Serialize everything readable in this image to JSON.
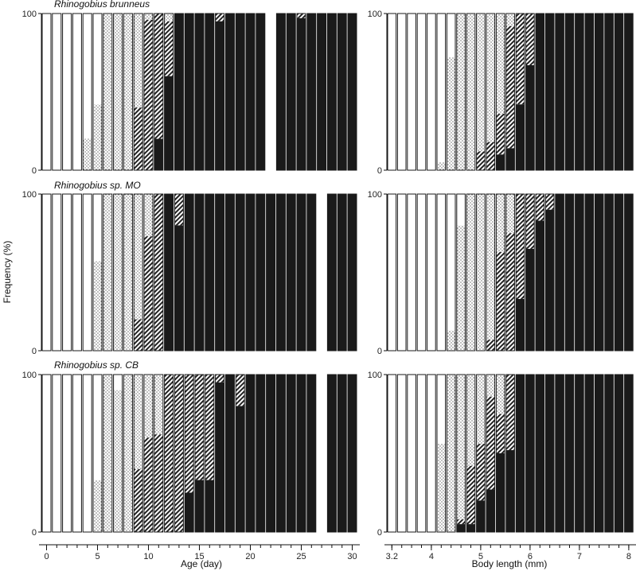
{
  "figure": {
    "y_axis_title": "Frequency (%)",
    "x_axis_titles": [
      "Age (day)",
      "Body length (mm)"
    ]
  },
  "colors": {
    "class_1": "#ffffff",
    "class_2": "dotted",
    "class_3": "hatched",
    "class_4": "#1a1a1a",
    "outline": "#1a1a1a"
  },
  "chart_data": [
    {
      "type": "stacked-bar",
      "title": "Rhinogobius brunneus",
      "xlabel": "Age (day)",
      "ylabel": "Frequency (%)",
      "x_ticks": [
        "0",
        "5",
        "10",
        "15",
        "20",
        "25",
        "30"
      ],
      "y_ticks": [
        "0",
        "100"
      ],
      "ylim": [
        0,
        100
      ],
      "xlim": [
        -0.5,
        30.5
      ],
      "categories": [
        0,
        1,
        2,
        3,
        4,
        5,
        6,
        7,
        8,
        9,
        10,
        11,
        12,
        13,
        14,
        15,
        16,
        17,
        18,
        19,
        20,
        21,
        22,
        23,
        24,
        25,
        26,
        27,
        28,
        29,
        30
      ],
      "series_order": [
        "class_1",
        "class_2",
        "class_3",
        "class_4"
      ],
      "missing": [
        22
      ],
      "values": [
        [
          100,
          0,
          0,
          0
        ],
        [
          100,
          0,
          0,
          0
        ],
        [
          100,
          0,
          0,
          0
        ],
        [
          100,
          0,
          0,
          0
        ],
        [
          80,
          20,
          0,
          0
        ],
        [
          58,
          42,
          0,
          0
        ],
        [
          0,
          100,
          0,
          0
        ],
        [
          0,
          100,
          0,
          0
        ],
        [
          0,
          100,
          0,
          0
        ],
        [
          0,
          60,
          40,
          0
        ],
        [
          0,
          4,
          96,
          0
        ],
        [
          0,
          0,
          80,
          20
        ],
        [
          0,
          5,
          35,
          60
        ],
        [
          0,
          0,
          0,
          100
        ],
        [
          0,
          0,
          0,
          100
        ],
        [
          0,
          0,
          0,
          100
        ],
        [
          0,
          0,
          0,
          100
        ],
        [
          0,
          0,
          5,
          95
        ],
        [
          0,
          0,
          0,
          100
        ],
        [
          0,
          0,
          0,
          100
        ],
        [
          0,
          0,
          0,
          100
        ],
        [
          0,
          0,
          0,
          100
        ],
        [
          0,
          0,
          0,
          0
        ],
        [
          0,
          0,
          0,
          100
        ],
        [
          0,
          0,
          0,
          100
        ],
        [
          0,
          0,
          3,
          97
        ],
        [
          0,
          0,
          0,
          100
        ],
        [
          0,
          0,
          0,
          100
        ],
        [
          0,
          0,
          0,
          100
        ],
        [
          0,
          0,
          0,
          100
        ],
        [
          0,
          0,
          0,
          100
        ]
      ]
    },
    {
      "type": "stacked-bar",
      "title": "",
      "xlabel": "Body length (mm)",
      "ylabel": "",
      "x_ticks": [
        "3.2",
        "4",
        "5",
        "6",
        "7",
        "8"
      ],
      "y_ticks": [
        "0",
        "100"
      ],
      "ylim": [
        0,
        100
      ],
      "xlim": [
        3.1,
        8.1
      ],
      "categories": [
        3.2,
        3.4,
        3.6,
        3.8,
        4.0,
        4.2,
        4.4,
        4.6,
        4.8,
        5.0,
        5.2,
        5.4,
        5.6,
        5.8,
        6.0,
        6.2,
        6.4,
        6.6,
        6.8,
        7.0,
        7.2,
        7.4,
        7.6,
        7.8,
        8.0
      ],
      "series_order": [
        "class_1",
        "class_2",
        "class_3",
        "class_4"
      ],
      "missing": [],
      "values": [
        [
          100,
          0,
          0,
          0
        ],
        [
          100,
          0,
          0,
          0
        ],
        [
          100,
          0,
          0,
          0
        ],
        [
          100,
          0,
          0,
          0
        ],
        [
          100,
          0,
          0,
          0
        ],
        [
          95,
          5,
          0,
          0
        ],
        [
          28,
          72,
          0,
          0
        ],
        [
          0,
          100,
          0,
          0
        ],
        [
          0,
          100,
          0,
          0
        ],
        [
          0,
          88,
          12,
          0
        ],
        [
          0,
          82,
          18,
          0
        ],
        [
          0,
          64,
          26,
          10
        ],
        [
          0,
          8,
          78,
          14
        ],
        [
          0,
          0,
          58,
          42
        ],
        [
          0,
          0,
          33,
          67
        ],
        [
          0,
          0,
          0,
          100
        ],
        [
          0,
          0,
          0,
          100
        ],
        [
          0,
          0,
          0,
          100
        ],
        [
          0,
          0,
          0,
          100
        ],
        [
          0,
          0,
          0,
          100
        ],
        [
          0,
          0,
          0,
          100
        ],
        [
          0,
          0,
          0,
          100
        ],
        [
          0,
          0,
          0,
          100
        ],
        [
          0,
          0,
          0,
          100
        ],
        [
          0,
          0,
          0,
          100
        ]
      ]
    },
    {
      "type": "stacked-bar",
      "title": "Rhinogobius sp. MO",
      "xlabel": "Age (day)",
      "ylabel": "Frequency (%)",
      "x_ticks": [
        "0",
        "5",
        "10",
        "15",
        "20",
        "25",
        "30"
      ],
      "y_ticks": [
        "0",
        "100"
      ],
      "ylim": [
        0,
        100
      ],
      "xlim": [
        -0.5,
        30.5
      ],
      "categories": [
        0,
        1,
        2,
        3,
        4,
        5,
        6,
        7,
        8,
        9,
        10,
        11,
        12,
        13,
        14,
        15,
        16,
        17,
        18,
        19,
        20,
        21,
        22,
        23,
        24,
        25,
        26,
        27,
        28,
        29,
        30
      ],
      "series_order": [
        "class_1",
        "class_2",
        "class_3",
        "class_4"
      ],
      "missing": [
        27
      ],
      "values": [
        [
          100,
          0,
          0,
          0
        ],
        [
          100,
          0,
          0,
          0
        ],
        [
          100,
          0,
          0,
          0
        ],
        [
          100,
          0,
          0,
          0
        ],
        [
          100,
          0,
          0,
          0
        ],
        [
          43,
          57,
          0,
          0
        ],
        [
          0,
          100,
          0,
          0
        ],
        [
          0,
          100,
          0,
          0
        ],
        [
          0,
          100,
          0,
          0
        ],
        [
          0,
          80,
          20,
          0
        ],
        [
          0,
          27,
          73,
          0
        ],
        [
          0,
          0,
          100,
          0
        ],
        [
          0,
          0,
          0,
          100
        ],
        [
          0,
          0,
          20,
          80
        ],
        [
          0,
          0,
          0,
          100
        ],
        [
          0,
          0,
          0,
          100
        ],
        [
          0,
          0,
          0,
          100
        ],
        [
          0,
          0,
          0,
          100
        ],
        [
          0,
          0,
          0,
          100
        ],
        [
          0,
          0,
          0,
          100
        ],
        [
          0,
          0,
          0,
          100
        ],
        [
          0,
          0,
          0,
          100
        ],
        [
          0,
          0,
          0,
          100
        ],
        [
          0,
          0,
          0,
          100
        ],
        [
          0,
          0,
          0,
          100
        ],
        [
          0,
          0,
          0,
          100
        ],
        [
          0,
          0,
          0,
          100
        ],
        [
          0,
          0,
          0,
          0
        ],
        [
          0,
          0,
          0,
          100
        ],
        [
          0,
          0,
          0,
          100
        ],
        [
          0,
          0,
          0,
          100
        ]
      ]
    },
    {
      "type": "stacked-bar",
      "title": "",
      "xlabel": "Body length (mm)",
      "ylabel": "",
      "x_ticks": [
        "3.2",
        "4",
        "5",
        "6",
        "7",
        "8"
      ],
      "y_ticks": [
        "0",
        "100"
      ],
      "ylim": [
        0,
        100
      ],
      "xlim": [
        3.1,
        8.1
      ],
      "categories": [
        3.2,
        3.4,
        3.6,
        3.8,
        4.0,
        4.2,
        4.4,
        4.6,
        4.8,
        5.0,
        5.2,
        5.4,
        5.6,
        5.8,
        6.0,
        6.2,
        6.4,
        6.6,
        6.8,
        7.0,
        7.2,
        7.4,
        7.6,
        7.8,
        8.0
      ],
      "series_order": [
        "class_1",
        "class_2",
        "class_3",
        "class_4"
      ],
      "missing": [],
      "values": [
        [
          100,
          0,
          0,
          0
        ],
        [
          100,
          0,
          0,
          0
        ],
        [
          100,
          0,
          0,
          0
        ],
        [
          100,
          0,
          0,
          0
        ],
        [
          100,
          0,
          0,
          0
        ],
        [
          100,
          0,
          0,
          0
        ],
        [
          87,
          13,
          0,
          0
        ],
        [
          20,
          80,
          0,
          0
        ],
        [
          0,
          100,
          0,
          0
        ],
        [
          0,
          100,
          0,
          0
        ],
        [
          0,
          93,
          7,
          0
        ],
        [
          0,
          37,
          63,
          0
        ],
        [
          0,
          25,
          75,
          0
        ],
        [
          0,
          0,
          67,
          33
        ],
        [
          0,
          0,
          35,
          65
        ],
        [
          0,
          0,
          17,
          83
        ],
        [
          0,
          0,
          10,
          90
        ],
        [
          0,
          0,
          0,
          100
        ],
        [
          0,
          0,
          0,
          100
        ],
        [
          0,
          0,
          0,
          100
        ],
        [
          0,
          0,
          0,
          100
        ],
        [
          0,
          0,
          0,
          100
        ],
        [
          0,
          0,
          0,
          100
        ],
        [
          0,
          0,
          0,
          100
        ],
        [
          0,
          0,
          0,
          100
        ]
      ]
    },
    {
      "type": "stacked-bar",
      "title": "Rhinogobius sp. CB",
      "xlabel": "Age (day)",
      "ylabel": "Frequency (%)",
      "x_ticks": [
        "0",
        "5",
        "10",
        "15",
        "20",
        "25",
        "30"
      ],
      "y_ticks": [
        "0",
        "100"
      ],
      "ylim": [
        0,
        100
      ],
      "xlim": [
        -0.5,
        30.5
      ],
      "categories": [
        0,
        1,
        2,
        3,
        4,
        5,
        6,
        7,
        8,
        9,
        10,
        11,
        12,
        13,
        14,
        15,
        16,
        17,
        18,
        19,
        20,
        21,
        22,
        23,
        24,
        25,
        26,
        27,
        28,
        29,
        30
      ],
      "series_order": [
        "class_1",
        "class_2",
        "class_3",
        "class_4"
      ],
      "missing": [
        27
      ],
      "values": [
        [
          100,
          0,
          0,
          0
        ],
        [
          100,
          0,
          0,
          0
        ],
        [
          100,
          0,
          0,
          0
        ],
        [
          100,
          0,
          0,
          0
        ],
        [
          100,
          0,
          0,
          0
        ],
        [
          67,
          33,
          0,
          0
        ],
        [
          0,
          100,
          0,
          0
        ],
        [
          10,
          90,
          0,
          0
        ],
        [
          0,
          100,
          0,
          0
        ],
        [
          0,
          60,
          40,
          0
        ],
        [
          0,
          40,
          60,
          0
        ],
        [
          0,
          38,
          62,
          0
        ],
        [
          0,
          0,
          100,
          0
        ],
        [
          0,
          0,
          100,
          0
        ],
        [
          0,
          0,
          75,
          25
        ],
        [
          0,
          0,
          67,
          33
        ],
        [
          0,
          0,
          67,
          33
        ],
        [
          0,
          0,
          5,
          95
        ],
        [
          0,
          0,
          0,
          100
        ],
        [
          0,
          0,
          20,
          80
        ],
        [
          0,
          0,
          0,
          100
        ],
        [
          0,
          0,
          0,
          100
        ],
        [
          0,
          0,
          0,
          100
        ],
        [
          0,
          0,
          0,
          100
        ],
        [
          0,
          0,
          0,
          100
        ],
        [
          0,
          0,
          0,
          100
        ],
        [
          0,
          0,
          0,
          100
        ],
        [
          0,
          0,
          0,
          0
        ],
        [
          0,
          0,
          0,
          100
        ],
        [
          0,
          0,
          0,
          100
        ],
        [
          0,
          0,
          0,
          100
        ]
      ]
    },
    {
      "type": "stacked-bar",
      "title": "",
      "xlabel": "Body length (mm)",
      "ylabel": "",
      "x_ticks": [
        "3.2",
        "4",
        "5",
        "6",
        "7",
        "8"
      ],
      "y_ticks": [
        "0",
        "100"
      ],
      "ylim": [
        0,
        100
      ],
      "xlim": [
        3.1,
        8.1
      ],
      "categories": [
        3.2,
        3.4,
        3.6,
        3.8,
        4.0,
        4.2,
        4.4,
        4.6,
        4.8,
        5.0,
        5.2,
        5.4,
        5.6,
        5.8,
        6.0,
        6.2,
        6.4,
        6.6,
        6.8,
        7.0,
        7.2,
        7.4,
        7.6,
        7.8,
        8.0
      ],
      "series_order": [
        "class_1",
        "class_2",
        "class_3",
        "class_4"
      ],
      "missing": [],
      "values": [
        [
          100,
          0,
          0,
          0
        ],
        [
          100,
          0,
          0,
          0
        ],
        [
          100,
          0,
          0,
          0
        ],
        [
          100,
          0,
          0,
          0
        ],
        [
          100,
          0,
          0,
          0
        ],
        [
          44,
          56,
          0,
          0
        ],
        [
          0,
          100,
          0,
          0
        ],
        [
          0,
          92,
          3,
          5
        ],
        [
          0,
          58,
          37,
          5
        ],
        [
          0,
          44,
          36,
          20
        ],
        [
          0,
          14,
          59,
          27
        ],
        [
          0,
          25,
          25,
          50
        ],
        [
          0,
          0,
          48,
          52
        ],
        [
          0,
          0,
          0,
          100
        ],
        [
          0,
          0,
          0,
          100
        ],
        [
          0,
          0,
          0,
          100
        ],
        [
          0,
          0,
          0,
          100
        ],
        [
          0,
          0,
          0,
          100
        ],
        [
          0,
          0,
          0,
          100
        ],
        [
          0,
          0,
          0,
          100
        ],
        [
          0,
          0,
          0,
          100
        ],
        [
          0,
          0,
          0,
          100
        ],
        [
          0,
          0,
          0,
          100
        ],
        [
          0,
          0,
          0,
          100
        ],
        [
          0,
          0,
          0,
          100
        ]
      ]
    }
  ]
}
